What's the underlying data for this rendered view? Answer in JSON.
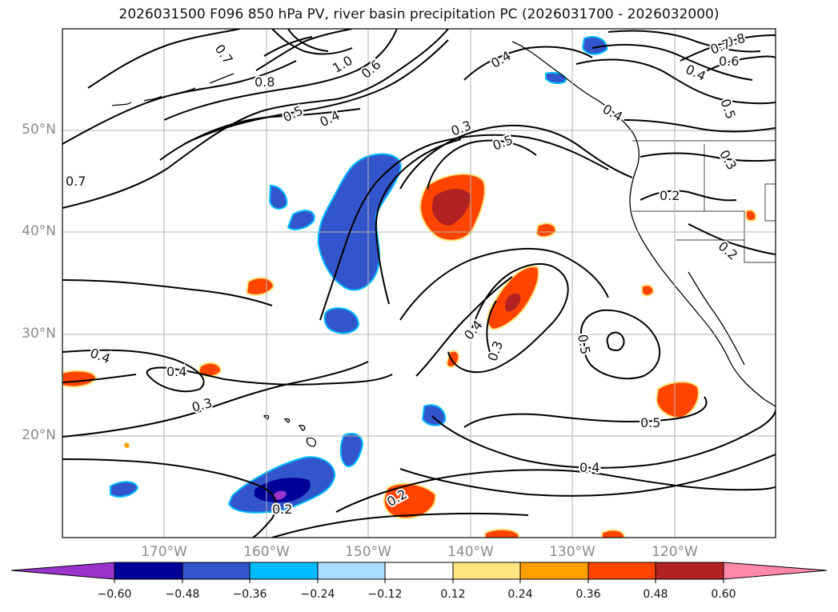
{
  "title": "2026031500 F096 850 hPa PV, river basin precipitation PC (2026031700 - 2026032000)",
  "map": {
    "lat_labels": [
      "50°N",
      "40°N",
      "30°N",
      "20°N"
    ],
    "lon_labels": [
      "170°W",
      "160°W",
      "150°W",
      "140°W",
      "130°W",
      "120°W"
    ],
    "contour_labels": [
      {
        "text": "0.7",
        "name": "pv-label-0-7-west"
      },
      {
        "text": "0.4",
        "name": "pv-label-0-4-west"
      },
      {
        "text": "0.4",
        "name": "pv-label-0-4-subtropic"
      },
      {
        "text": "0.3",
        "name": "pv-label-0-3-central"
      },
      {
        "text": "0.2",
        "name": "pv-label-0-2-south"
      },
      {
        "text": "0.2",
        "name": "pv-label-0-2-south-central"
      },
      {
        "text": "0.5",
        "name": "pv-label-0-5-north"
      },
      {
        "text": "0.4",
        "name": "pv-label-0-4-north"
      },
      {
        "text": "0.8",
        "name": "pv-label-0-8-north"
      },
      {
        "text": "1.0",
        "name": "pv-label-1-0-north"
      },
      {
        "text": "0.6",
        "name": "pv-label-0-6-north"
      },
      {
        "text": "0.7",
        "name": "pv-label-0-7-north"
      },
      {
        "text": "0.3",
        "name": "pv-label-0-3-gulf"
      },
      {
        "text": "0.5",
        "name": "pv-label-0-5-gulf"
      },
      {
        "text": "0.4",
        "name": "pv-label-0-4-alaska"
      },
      {
        "text": "0.4",
        "name": "pv-label-0-4-canada"
      },
      {
        "text": "0.8",
        "name": "pv-label-0-8-ne"
      },
      {
        "text": "0.7",
        "name": "pv-label-0-7-ne"
      },
      {
        "text": "0.6",
        "name": "pv-label-0-6-ne"
      },
      {
        "text": "0.4",
        "name": "pv-label-0-4-ne"
      },
      {
        "text": "0.5",
        "name": "pv-label-0-5-ne"
      },
      {
        "text": "0.3",
        "name": "pv-label-0-3-rockies"
      },
      {
        "text": "0.2",
        "name": "pv-label-0-2-california"
      },
      {
        "text": "0.2",
        "name": "pv-label-0-2-coast"
      },
      {
        "text": "0.4",
        "name": "pv-label-0-4-mid"
      },
      {
        "text": "0.3",
        "name": "pv-label-0-3-mid"
      },
      {
        "text": "0.5",
        "name": "pv-label-0-5-east"
      },
      {
        "text": "0.5",
        "name": "pv-label-0-5-southeast"
      },
      {
        "text": "0.4",
        "name": "pv-label-0-4-southeast"
      }
    ]
  },
  "colorbar": {
    "tick_labels": [
      "−0.60",
      "−0.48",
      "−0.36",
      "−0.24",
      "−0.12",
      "0.12",
      "0.24",
      "0.36",
      "0.48",
      "0.60"
    ],
    "colors": [
      "#9933cc",
      "#000099",
      "#3355cc",
      "#00bbff",
      "#aaddff",
      "#ffffff",
      "#ffe680",
      "#ffa000",
      "#ff4400",
      "#b22222",
      "#ff88aa"
    ]
  }
}
